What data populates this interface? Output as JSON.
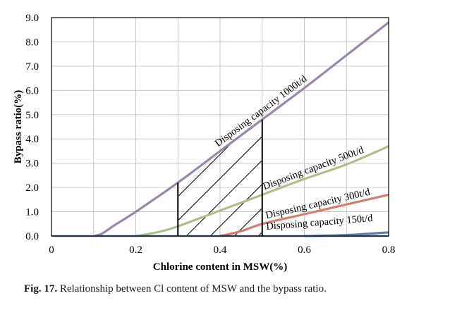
{
  "chart_data": {
    "type": "line",
    "xlabel": "Chlorine content in MSW(%)",
    "ylabel": "Bypass ratio(%)",
    "xlim": [
      0,
      0.8
    ],
    "ylim": [
      0,
      9.0
    ],
    "x_ticks": [
      "0",
      "0.2",
      "0.4",
      "0.6",
      "0.8"
    ],
    "y_ticks": [
      "0.0",
      "1.0",
      "2.0",
      "3.0",
      "4.0",
      "5.0",
      "6.0",
      "7.0",
      "8.0",
      "9.0"
    ],
    "x_tick_values": [
      0,
      0.2,
      0.4,
      0.6,
      0.8
    ],
    "y_tick_values": [
      0,
      1,
      2,
      3,
      4,
      5,
      6,
      7,
      8,
      9
    ],
    "grid": true,
    "series": [
      {
        "label": "Disposing capacity 1000t/d",
        "color": "#9a87a8",
        "points": [
          [
            0.1,
            0.0
          ],
          [
            0.12,
            0.1
          ],
          [
            0.15,
            0.45
          ],
          [
            0.2,
            1.0
          ],
          [
            0.3,
            2.2
          ],
          [
            0.4,
            3.5
          ],
          [
            0.5,
            4.8
          ],
          [
            0.6,
            6.1
          ],
          [
            0.7,
            7.45
          ],
          [
            0.8,
            8.8
          ]
        ]
      },
      {
        "label": "Disposing capacity 500t/d",
        "color": "#aebe88",
        "points": [
          [
            0.2,
            0.0
          ],
          [
            0.25,
            0.15
          ],
          [
            0.3,
            0.4
          ],
          [
            0.4,
            1.05
          ],
          [
            0.5,
            1.7
          ],
          [
            0.6,
            2.35
          ],
          [
            0.7,
            2.95
          ],
          [
            0.8,
            3.7
          ]
        ]
      },
      {
        "label": "Disposing capacity 300t/d",
        "color": "#cf7f70",
        "points": [
          [
            0.4,
            0.0
          ],
          [
            0.45,
            0.2
          ],
          [
            0.5,
            0.5
          ],
          [
            0.6,
            0.9
          ],
          [
            0.7,
            1.3
          ],
          [
            0.8,
            1.7
          ]
        ]
      },
      {
        "label": "Disposing capacity 150t/d",
        "color": "#5a7fad",
        "points": [
          [
            0.6,
            0.0
          ],
          [
            0.7,
            0.04
          ],
          [
            0.8,
            0.15
          ]
        ]
      }
    ],
    "hatched_region": {
      "x_from": 0.3,
      "x_to": 0.5
    }
  },
  "caption": {
    "label": "Fig. 17.",
    "text": " Relationship between Cl content of MSW and the bypass ratio."
  }
}
